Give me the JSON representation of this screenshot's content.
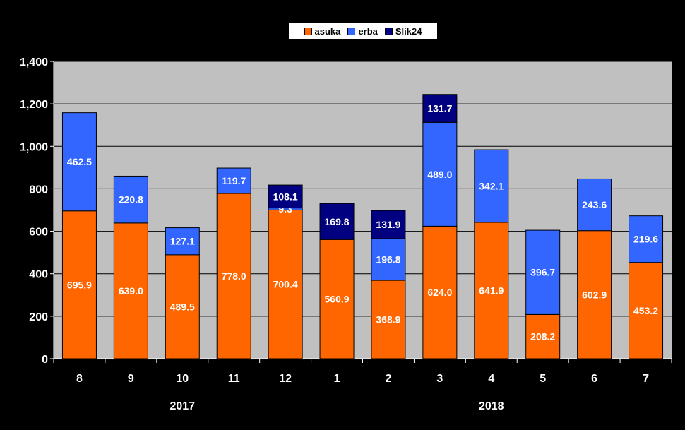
{
  "chart_data": {
    "type": "bar",
    "stacked": true,
    "categories": [
      "8",
      "9",
      "10",
      "11",
      "12",
      "1",
      "2",
      "3",
      "4",
      "5",
      "6",
      "7"
    ],
    "year_labels": [
      {
        "label": "2017",
        "categories": [
          "8",
          "9",
          "10",
          "11",
          "12"
        ]
      },
      {
        "label": "2018",
        "categories": [
          "1",
          "2",
          "3",
          "4",
          "5",
          "6",
          "7"
        ]
      }
    ],
    "series": [
      {
        "name": "asuka",
        "color": "#FF6600",
        "values": [
          695.9,
          639.0,
          489.5,
          778.0,
          700.4,
          560.9,
          368.9,
          624.0,
          641.9,
          208.2,
          602.9,
          453.2
        ]
      },
      {
        "name": "erba",
        "color": "#3366FF",
        "values": [
          462.5,
          220.8,
          127.1,
          119.7,
          9.3,
          null,
          196.8,
          489.0,
          342.1,
          396.7,
          243.6,
          219.6
        ]
      },
      {
        "name": "Slik24",
        "color": "#000080",
        "values": [
          null,
          null,
          null,
          null,
          108.1,
          169.8,
          131.9,
          131.7,
          null,
          null,
          null,
          null
        ]
      }
    ],
    "ylim": [
      0,
      1400
    ],
    "yticks": [
      0,
      200,
      400,
      600,
      800,
      1000,
      1200,
      1400
    ],
    "ytick_labels": [
      "0",
      "200",
      "400",
      "600",
      "800",
      "1,000",
      "1,200",
      "1,400"
    ],
    "grid": true,
    "legend_position": "top-center",
    "title": "",
    "xlabel": "",
    "ylabel": ""
  }
}
